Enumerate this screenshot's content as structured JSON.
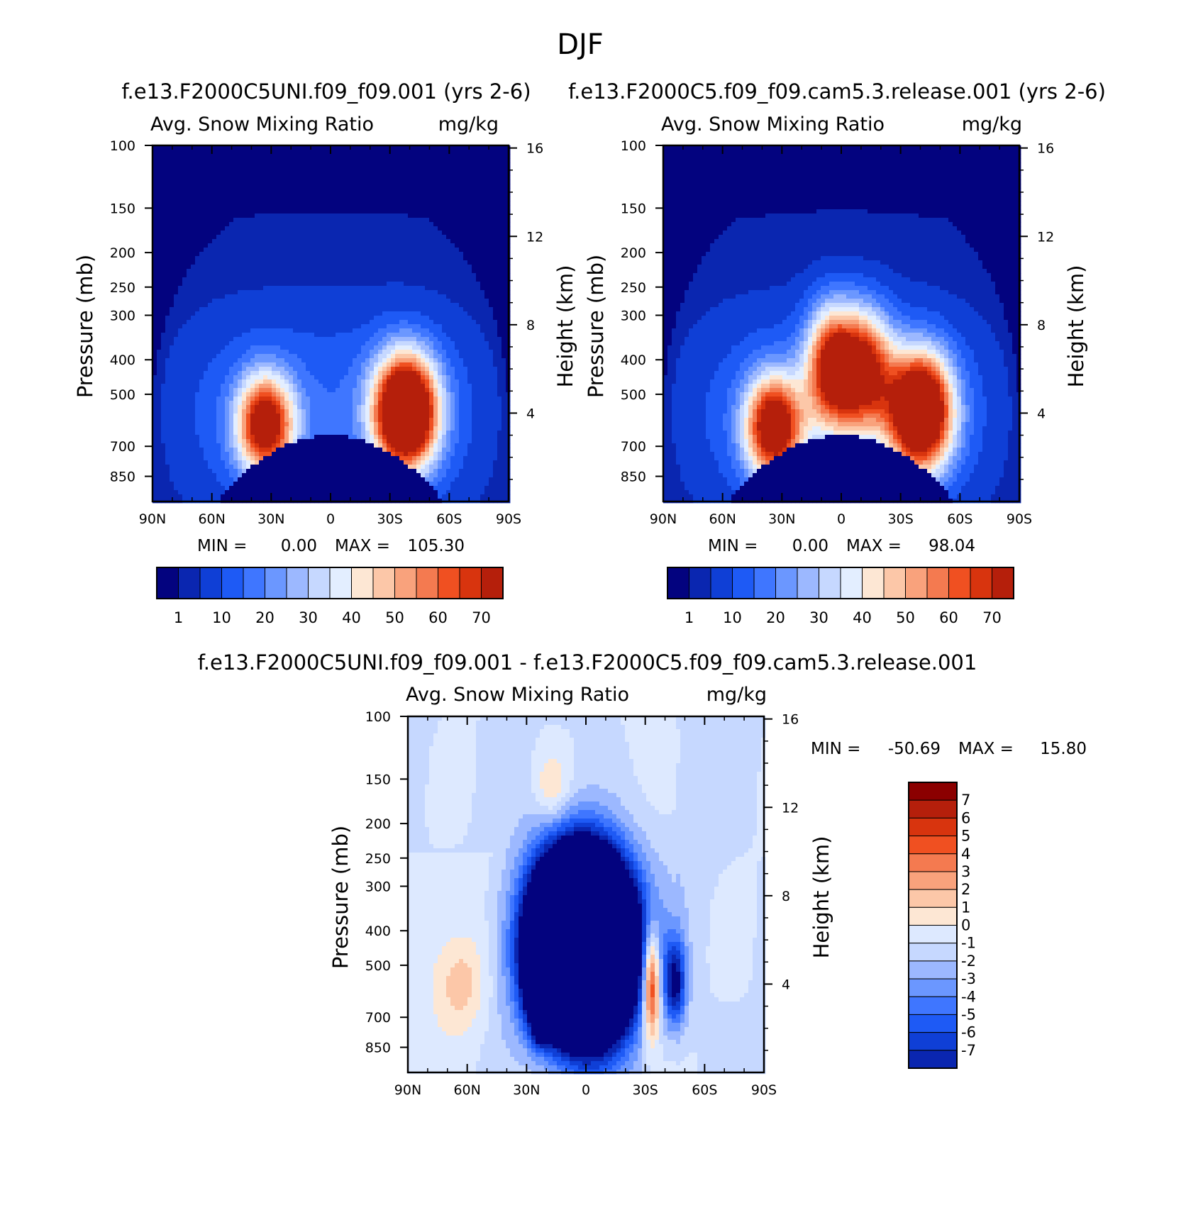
{
  "figure": {
    "season": "DJF",
    "stats_label_min": "MIN =",
    "stats_label_max": "MAX =",
    "height_ticks": [
      "16",
      "12",
      "8",
      "4"
    ]
  },
  "chart_data": [
    {
      "type": "heatmap",
      "panel": "top-left",
      "title": "f.e13.F2000C5UNI.f09_f09.001 (yrs 2-6)",
      "variable": "Avg. Snow Mixing Ratio",
      "units": "mg/kg",
      "xlabel": "",
      "ylabel": "Pressure (mb)",
      "y2label": "Height (km)",
      "x_ticks": [
        "90N",
        "60N",
        "30N",
        "0",
        "30S",
        "60S",
        "90S"
      ],
      "xlim": [
        90,
        -90
      ],
      "y_ticks": [
        100,
        150,
        200,
        250,
        300,
        400,
        500,
        700,
        850
      ],
      "ylim": [
        100,
        1000
      ],
      "y2_ticks": [
        16,
        12,
        8,
        4
      ],
      "min": "0.00",
      "max": "105.30",
      "contour_levels": [
        1,
        5,
        10,
        15,
        20,
        25,
        30,
        35,
        40,
        45,
        50,
        55,
        60,
        65,
        70
      ],
      "colorbar_labels": [
        "1",
        "10",
        "20",
        "30",
        "40",
        "50",
        "60",
        "70"
      ],
      "features": [
        {
          "lat": 33,
          "p": 610,
          "peak": 72,
          "dlat": 10,
          "dz": 1.55
        },
        {
          "lat": -38,
          "p": 560,
          "peak": 105,
          "dlat": 11,
          "dz": 1.75
        }
      ]
    },
    {
      "type": "heatmap",
      "panel": "top-right",
      "title": "f.e13.F2000C5.f09_f09.cam5.3.release.001 (yrs 2-6)",
      "variable": "Avg. Snow Mixing Ratio",
      "units": "mg/kg",
      "xlabel": "",
      "ylabel": "Pressure (mb)",
      "y2label": "Height (km)",
      "x_ticks": [
        "90N",
        "60N",
        "30N",
        "0",
        "30S",
        "60S",
        "90S"
      ],
      "xlim": [
        90,
        -90
      ],
      "y_ticks": [
        100,
        150,
        200,
        250,
        300,
        400,
        500,
        700,
        850
      ],
      "ylim": [
        100,
        1000
      ],
      "y2_ticks": [
        16,
        12,
        8,
        4
      ],
      "min": "0.00",
      "max": "98.04",
      "contour_levels": [
        1,
        5,
        10,
        15,
        20,
        25,
        30,
        35,
        40,
        45,
        50,
        55,
        60,
        65,
        70
      ],
      "colorbar_labels": [
        "1",
        "10",
        "20",
        "30",
        "40",
        "50",
        "60",
        "70"
      ],
      "features": [
        {
          "lat": 34,
          "p": 620,
          "peak": 76,
          "dlat": 10,
          "dz": 1.6
        },
        {
          "lat": 5,
          "p": 420,
          "peak": 64,
          "dlat": 9,
          "dz": 1.9
        },
        {
          "lat": -12,
          "p": 430,
          "peak": 62,
          "dlat": 10,
          "dz": 1.9
        },
        {
          "lat": -40,
          "p": 560,
          "peak": 98,
          "dlat": 11,
          "dz": 1.8
        }
      ]
    },
    {
      "type": "heatmap",
      "panel": "bottom",
      "title": "f.e13.F2000C5UNI.f09_f09.001 - f.e13.F2000C5.f09_f09.cam5.3.release.001",
      "variable": "Avg. Snow Mixing Ratio",
      "units": "mg/kg",
      "xlabel": "",
      "ylabel": "Pressure (mb)",
      "y2label": "Height (km)",
      "x_ticks": [
        "90N",
        "60N",
        "30N",
        "0",
        "30S",
        "60S",
        "90S"
      ],
      "xlim": [
        90,
        -90
      ],
      "y_ticks": [
        100,
        150,
        200,
        250,
        300,
        400,
        500,
        700,
        850
      ],
      "ylim": [
        100,
        1000
      ],
      "y2_ticks": [
        16,
        12,
        8,
        4
      ],
      "min": "-50.69",
      "max": "15.80",
      "contour_levels": [
        -7,
        -6,
        -5,
        -4,
        -3,
        -2,
        -1,
        0,
        1,
        2,
        3,
        4,
        5,
        6,
        7
      ],
      "colorbar_labels": [
        "7",
        "6",
        "5",
        "4",
        "3",
        "2",
        "1",
        "0",
        "-1",
        "-2",
        "-3",
        "-4",
        "-5",
        "-6",
        "-7"
      ],
      "features": [
        {
          "lat": 2,
          "p": 440,
          "peak": -50,
          "dlat": 16,
          "dz": 2.6
        },
        {
          "lat": 26,
          "p": 520,
          "peak": -6,
          "dlat": 4,
          "dz": 1.5
        },
        {
          "lat": 22,
          "p": 720,
          "peak": -10,
          "dlat": 3,
          "dz": 0.6
        },
        {
          "lat": -33,
          "p": 560,
          "peak": 9,
          "dlat": 3,
          "dz": 1.7
        },
        {
          "lat": -45,
          "p": 560,
          "peak": -7,
          "dlat": 4,
          "dz": 1.4
        },
        {
          "lat": 63,
          "p": 560,
          "peak": 2.5,
          "dlat": 9,
          "dz": 1.6
        },
        {
          "lat": 17,
          "p": 160,
          "peak": 2.4,
          "dlat": 6,
          "dz": 1.1
        }
      ]
    }
  ],
  "colors": {
    "seq": [
      "#03037f",
      "#0a26b0",
      "#0f3fd6",
      "#1e5af5",
      "#3f76ff",
      "#6b97ff",
      "#9cb8ff",
      "#c6d8ff",
      "#e3eeff",
      "#fde7d4",
      "#fcc7a8",
      "#f9a27c",
      "#f47a50",
      "#f05021",
      "#d8340e",
      "#b51f0b",
      "#8b0000"
    ],
    "diff": [
      "#03037f",
      "#0a26b0",
      "#0f3fd6",
      "#1e5af5",
      "#3f76ff",
      "#6b97ff",
      "#9cb8ff",
      "#c6d8ff",
      "#dde9ff",
      "#fde7d4",
      "#fcc7a8",
      "#f9a27c",
      "#f47a50",
      "#f05021",
      "#d8340e",
      "#b51f0b",
      "#8b0000"
    ]
  }
}
